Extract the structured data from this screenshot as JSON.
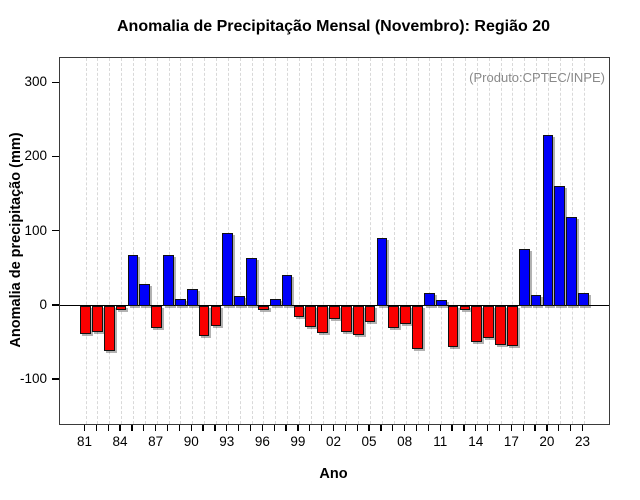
{
  "page": {
    "background": "#ffffff"
  },
  "chart_data": {
    "type": "bar",
    "title": "Anomalia de Precipitação Mensal (Novembro): Região 20",
    "annotation": "(Produto:CPTEC/INPE)",
    "xlabel": "Ano",
    "ylabel": "Anomalia de precipitação (mm)",
    "categories": [
      "81",
      "82",
      "83",
      "84",
      "85",
      "86",
      "87",
      "88",
      "89",
      "90",
      "91",
      "92",
      "93",
      "94",
      "95",
      "96",
      "97",
      "98",
      "99",
      "00",
      "01",
      "02",
      "03",
      "04",
      "05",
      "06",
      "07",
      "08",
      "09",
      "10",
      "11",
      "12",
      "13",
      "14",
      "15",
      "16",
      "17",
      "18",
      "19",
      "20",
      "21",
      "22",
      "23"
    ],
    "values": [
      -38,
      -35,
      -61,
      -6,
      68,
      30,
      -30,
      69,
      10,
      23,
      -40,
      -27,
      98,
      14,
      65,
      -6,
      10,
      42,
      -15,
      -29,
      -36,
      -18,
      -35,
      -39,
      -22,
      92,
      -30,
      -24,
      -58,
      17,
      8,
      -55,
      -5,
      -48,
      -43,
      -52,
      -54,
      77,
      15,
      230,
      162,
      120,
      17
    ],
    "x_tick_labels_shown": [
      "81",
      "84",
      "87",
      "90",
      "93",
      "96",
      "99",
      "02",
      "05",
      "08",
      "11",
      "14",
      "17",
      "20",
      "23"
    ],
    "x_tick_label_every": 3,
    "y_ticks": [
      300,
      200,
      100,
      0,
      -100
    ],
    "ylim": [
      -159,
      334
    ],
    "grid": "vertical-dashed",
    "legend": "none",
    "colors": {
      "positive": "#0000FA",
      "negative": "#FA0000",
      "grid": "#d9d9d9",
      "axis": "#000000",
      "annotation": "#8a8a8a"
    }
  }
}
